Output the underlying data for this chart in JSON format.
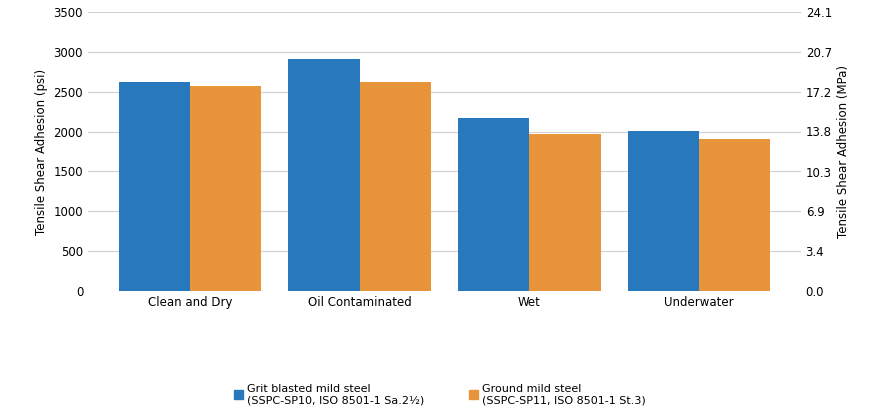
{
  "categories": [
    "Clean and Dry",
    "Oil Contaminated",
    "Wet",
    "Underwater"
  ],
  "blue_values": [
    2620,
    2920,
    2175,
    2005
  ],
  "orange_values": [
    2580,
    2625,
    1975,
    1910
  ],
  "blue_color": "#2878BE",
  "orange_color": "#E8943A",
  "ylabel_left": "Tensile Shear Adhesion (psi)",
  "ylabel_right": "Tensile Shear Adhesion (MPa)",
  "ylim_left": [
    0,
    3500
  ],
  "ylim_right": [
    0,
    24.1
  ],
  "yticks_left": [
    0,
    500,
    1000,
    1500,
    2000,
    2500,
    3000,
    3500
  ],
  "yticks_right": [
    0.0,
    3.4,
    6.9,
    10.3,
    13.8,
    17.2,
    20.7,
    24.1
  ],
  "legend1_label1": "Grit blasted mild steel",
  "legend1_label2": "(SSPC-SP10, ISO 8501-1 Sa.2½)",
  "legend2_label1": "Ground mild steel",
  "legend2_label2": "(SSPC-SP11, ISO 8501-1 St.3)",
  "background_color": "#ffffff",
  "grid_color": "#d0d0d0",
  "bar_width": 0.42,
  "fontsize_ticks": 8.5,
  "fontsize_ylabel": 8.5,
  "fontsize_legend": 8.0
}
